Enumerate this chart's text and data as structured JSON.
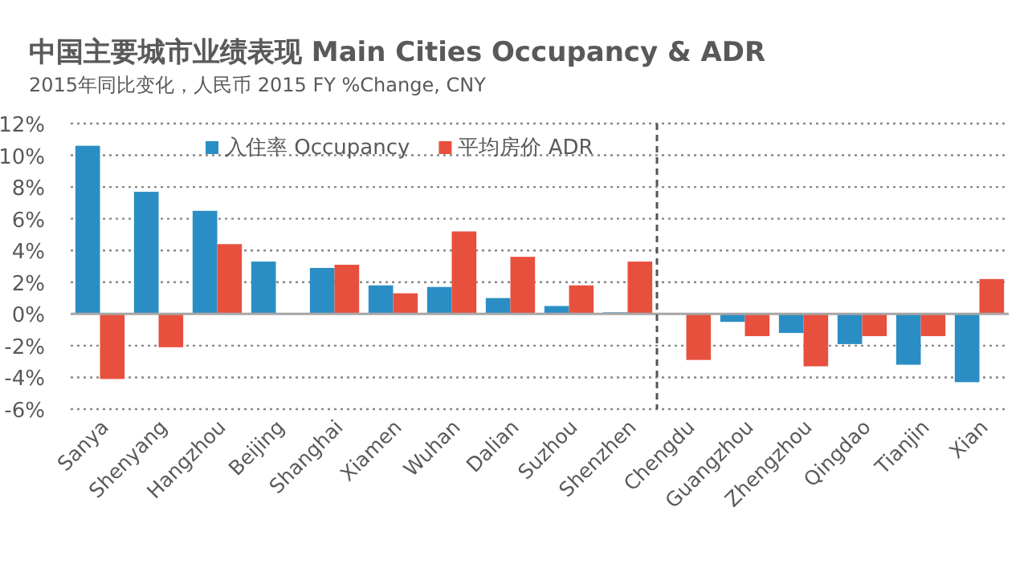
{
  "chart_data": {
    "type": "bar",
    "title": "中国主要城市业绩表现 Main Cities Occupancy & ADR",
    "subtitle": "2015年同比变化，人民币 2015 FY %Change, CNY",
    "categories": [
      "Sanya",
      "Shenyang",
      "Hangzhou",
      "Beijing",
      "Shanghai",
      "Xiamen",
      "Wuhan",
      "Dalian",
      "Suzhou",
      "Shenzhen",
      "Chengdu",
      "Guangzhou",
      "Zhengzhou",
      "Qingdao",
      "Tianjin",
      "Xian"
    ],
    "series": [
      {
        "name": "入住率 Occupancy",
        "color": "#2a8ec4",
        "values": [
          10.6,
          7.7,
          6.5,
          3.3,
          2.9,
          1.8,
          1.7,
          1.0,
          0.5,
          0.1,
          null,
          -0.5,
          -1.2,
          -1.9,
          -3.2,
          -4.3
        ]
      },
      {
        "name": "平均房价 ADR",
        "color": "#e8503e",
        "values": [
          -4.1,
          -2.1,
          4.4,
          null,
          3.1,
          1.3,
          5.2,
          3.6,
          1.8,
          3.3,
          -2.9,
          -1.4,
          -3.3,
          -1.4,
          -1.4,
          2.2
        ]
      }
    ],
    "ylim": [
      -6,
      12
    ],
    "yticks": [
      {
        "value": -6,
        "label": "-6%"
      },
      {
        "value": -4,
        "label": "-4%"
      },
      {
        "value": -2,
        "label": "-2%"
      },
      {
        "value": 0,
        "label": "0%"
      },
      {
        "value": 2,
        "label": "2%"
      },
      {
        "value": 4,
        "label": "4%"
      },
      {
        "value": 6,
        "label": "6%"
      },
      {
        "value": 8,
        "label": "8%"
      },
      {
        "value": 10,
        "label": "10%"
      },
      {
        "value": 12,
        "label": "12%"
      }
    ],
    "grid": "y",
    "legend": "top"
  }
}
